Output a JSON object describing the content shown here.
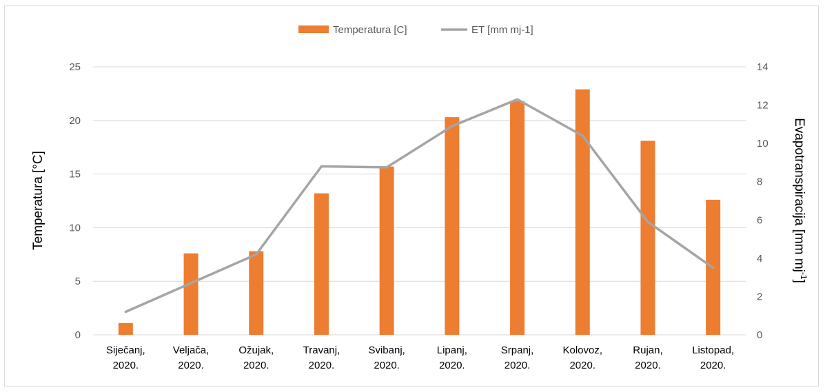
{
  "chart_data": {
    "type": "bar+line",
    "categories": [
      [
        "Siječanj,",
        "2020."
      ],
      [
        "Veljača,",
        "2020."
      ],
      [
        "Ožujak,",
        "2020."
      ],
      [
        "Travanj,",
        "2020."
      ],
      [
        "Svibanj,",
        "2020."
      ],
      [
        "Lipanj,",
        "2020."
      ],
      [
        "Srpanj,",
        "2020."
      ],
      [
        "Kolovoz,",
        "2020."
      ],
      [
        "Rujan,",
        "2020."
      ],
      [
        "Listopad,",
        "2020."
      ]
    ],
    "series": [
      {
        "name": "Temperatura [C]",
        "type": "bar",
        "axis": "left",
        "color": "#ed7d31",
        "values": [
          1.1,
          7.6,
          7.8,
          13.2,
          15.7,
          20.3,
          21.8,
          22.9,
          18.1,
          12.6
        ]
      },
      {
        "name": "ET [mm mj-1]",
        "type": "line",
        "axis": "right",
        "color": "#a5a5a5",
        "values": [
          1.2,
          2.7,
          4.2,
          8.8,
          8.75,
          10.9,
          12.3,
          10.4,
          5.9,
          3.5
        ]
      }
    ],
    "y_left": {
      "label": "Temperatura [°C]",
      "range": [
        0,
        25
      ],
      "ticks": [
        "0",
        "5",
        "10",
        "15",
        "20",
        "25"
      ]
    },
    "y_right": {
      "label_main": "Evapotranspiracija [mm mj",
      "label_sup": "-1",
      "label_end": "]",
      "range": [
        0,
        14
      ],
      "ticks": [
        "0",
        "2",
        "4",
        "6",
        "8",
        "10",
        "12",
        "14"
      ]
    },
    "grid": true,
    "legend_position": "top-center"
  }
}
